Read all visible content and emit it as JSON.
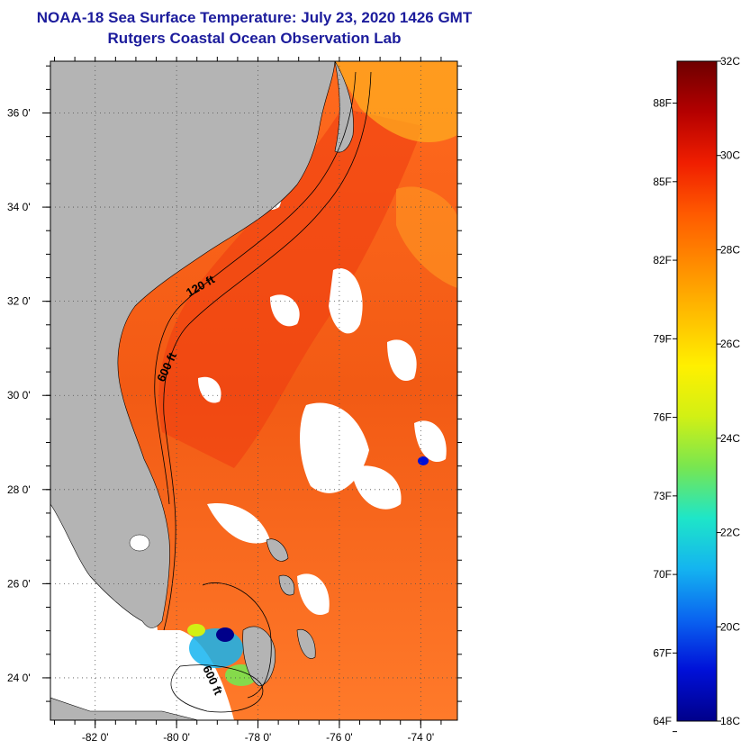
{
  "title_line1": "NOAA-18 Sea Surface Temperature:  July 23, 2020 1426 GMT",
  "title_line2": "Rutgers Coastal Ocean Observation Lab",
  "map": {
    "lon_range": [
      -83.1,
      -73.1
    ],
    "lat_range": [
      23.1,
      37.1
    ],
    "lon_ticks": [
      {
        "value": -82,
        "label": "-82 0'"
      },
      {
        "value": -80,
        "label": "-80 0'"
      },
      {
        "value": -78,
        "label": "-78 0'"
      },
      {
        "value": -76,
        "label": "-76 0'"
      },
      {
        "value": -74,
        "label": "-74 0'"
      }
    ],
    "lat_ticks": [
      {
        "value": 24,
        "label": "24 0'"
      },
      {
        "value": 26,
        "label": "26 0'"
      },
      {
        "value": 28,
        "label": "28 0'"
      },
      {
        "value": 30,
        "label": "30 0'"
      },
      {
        "value": 32,
        "label": "32 0'"
      },
      {
        "value": 34,
        "label": "34 0'"
      },
      {
        "value": 36,
        "label": "36 0'"
      }
    ],
    "contour_labels": [
      "120 ft",
      "600 ft",
      "600 ft"
    ],
    "land_color": "#b4b4b4",
    "nodata_color": "#ffffff"
  },
  "colorbar": {
    "min_c": 18,
    "max_c": 32,
    "celsius_ticks": [
      "32C",
      "30C",
      "28C",
      "26C",
      "24C",
      "22C",
      "20C",
      "18C"
    ],
    "fahrenheit_ticks": [
      "88F",
      "85F",
      "82F",
      "79F",
      "76F",
      "73F",
      "70F",
      "67F",
      "64F"
    ],
    "colors": [
      "#00008a",
      "#0010d8",
      "#0a64f0",
      "#14b4f0",
      "#1ee6c8",
      "#78e650",
      "#d2f014",
      "#fff000",
      "#ffbe00",
      "#ff8c00",
      "#ff5a00",
      "#f01e00",
      "#b40000",
      "#6e0000"
    ]
  }
}
